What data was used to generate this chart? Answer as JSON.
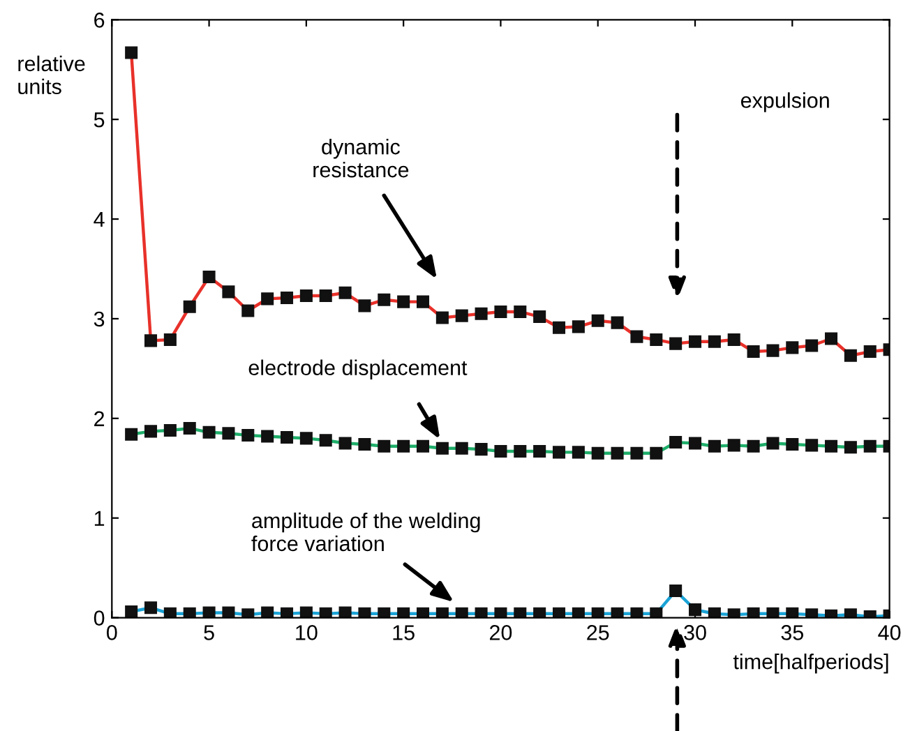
{
  "chart_data": {
    "type": "line",
    "xlabel": "time[halfperiods]",
    "ylabel": "relative\nunits",
    "x": [
      1,
      2,
      3,
      4,
      5,
      6,
      7,
      8,
      9,
      10,
      11,
      12,
      13,
      14,
      15,
      16,
      17,
      18,
      19,
      20,
      21,
      22,
      23,
      24,
      25,
      26,
      27,
      28,
      29,
      30,
      31,
      32,
      33,
      34,
      35,
      36,
      37,
      38,
      39,
      40
    ],
    "series": [
      {
        "color": "#e8312a",
        "values": [
          5.67,
          2.78,
          2.79,
          3.12,
          3.42,
          3.27,
          3.08,
          3.2,
          3.21,
          3.23,
          3.23,
          3.26,
          3.13,
          3.19,
          3.17,
          3.17,
          3.01,
          3.03,
          3.05,
          3.07,
          3.07,
          3.02,
          2.91,
          2.92,
          2.98,
          2.96,
          2.82,
          2.79,
          2.75,
          2.77,
          2.77,
          2.79,
          2.67,
          2.68,
          2.71,
          2.73,
          2.8,
          2.63,
          2.67,
          2.69
        ]
      },
      {
        "color": "#1fae6a",
        "values": [
          1.84,
          1.87,
          1.88,
          1.9,
          1.86,
          1.85,
          1.83,
          1.82,
          1.81,
          1.8,
          1.78,
          1.75,
          1.74,
          1.72,
          1.72,
          1.72,
          1.7,
          1.7,
          1.69,
          1.67,
          1.67,
          1.67,
          1.66,
          1.66,
          1.65,
          1.65,
          1.65,
          1.65,
          1.76,
          1.75,
          1.72,
          1.73,
          1.72,
          1.75,
          1.74,
          1.73,
          1.72,
          1.71,
          1.72,
          1.72
        ]
      },
      {
        "color": "#1aa3d6",
        "values": [
          0.06,
          0.1,
          0.04,
          0.04,
          0.05,
          0.05,
          0.03,
          0.05,
          0.04,
          0.05,
          0.04,
          0.05,
          0.04,
          0.04,
          0.04,
          0.04,
          0.04,
          0.04,
          0.04,
          0.04,
          0.04,
          0.04,
          0.04,
          0.04,
          0.04,
          0.04,
          0.04,
          0.04,
          0.27,
          0.08,
          0.04,
          0.03,
          0.04,
          0.04,
          0.04,
          0.03,
          0.02,
          0.03,
          0.01,
          0.02
        ]
      }
    ],
    "marker": "square",
    "line_style": "solid",
    "xlim": [
      0,
      40
    ],
    "ylim": [
      0,
      6
    ],
    "xticks": [
      0,
      5,
      10,
      15,
      20,
      25,
      30,
      35,
      40
    ],
    "yticks": [
      0,
      1,
      2,
      3,
      4,
      5,
      6
    ],
    "annotations": [
      "dynamic\nresistance",
      "electrode displacement",
      "amplitude of the welding\nforce variation",
      "expulsion"
    ]
  }
}
